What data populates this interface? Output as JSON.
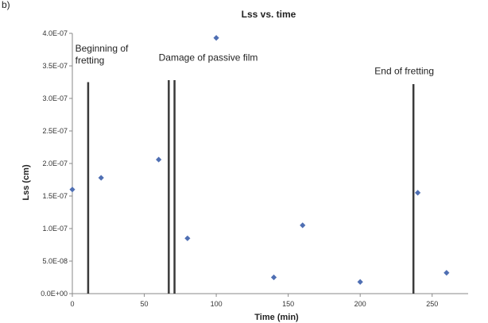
{
  "panel_label": "b)",
  "chart_data": {
    "type": "scatter",
    "title": "Lss vs. time",
    "xlabel": "Time (min)",
    "ylabel": "Lss (cm)",
    "xlim": [
      0,
      275
    ],
    "ylim": [
      0,
      4e-07
    ],
    "x_ticks": [
      0,
      50,
      100,
      150,
      200,
      250
    ],
    "x_tick_labels": [
      "0",
      "50",
      "100",
      "150",
      "200",
      "250"
    ],
    "y_ticks": [
      0,
      5e-08,
      1e-07,
      1.5e-07,
      2e-07,
      2.5e-07,
      3e-07,
      3.5e-07,
      4e-07
    ],
    "y_tick_labels": [
      "0.0E+00",
      "5.0E-08",
      "1.0E-07",
      "1.5E-07",
      "2.0E-07",
      "2.5E-07",
      "3.0E-07",
      "3.5E-07",
      "4.0E-07"
    ],
    "grid": false,
    "marker_color": "#4f6fb3",
    "points": [
      {
        "x": 0,
        "y": 1.6e-07
      },
      {
        "x": 20,
        "y": 1.78e-07
      },
      {
        "x": 60,
        "y": 2.06e-07
      },
      {
        "x": 80,
        "y": 8.5e-08
      },
      {
        "x": 100,
        "y": 3.93e-07
      },
      {
        "x": 140,
        "y": 2.5e-08
      },
      {
        "x": 160,
        "y": 1.05e-07
      },
      {
        "x": 200,
        "y": 1.8e-08
      },
      {
        "x": 240,
        "y": 1.55e-07
      },
      {
        "x": 260,
        "y": 3.2e-08
      }
    ],
    "vertical_lines": [
      {
        "x": 11,
        "y_top": 3.25e-07
      },
      {
        "x": 67,
        "y_top": 3.28e-07
      },
      {
        "x": 71,
        "y_top": 3.28e-07
      },
      {
        "x": 237,
        "y_top": 3.22e-07
      }
    ],
    "annotations": [
      {
        "lines": [
          "Beginning of",
          "fretting"
        ],
        "x": 2,
        "y": 3.72e-07
      },
      {
        "lines": [
          "Damage of passive film"
        ],
        "x": 60,
        "y": 3.58e-07
      },
      {
        "lines": [
          "End of fretting"
        ],
        "x": 210,
        "y": 3.37e-07
      }
    ]
  }
}
